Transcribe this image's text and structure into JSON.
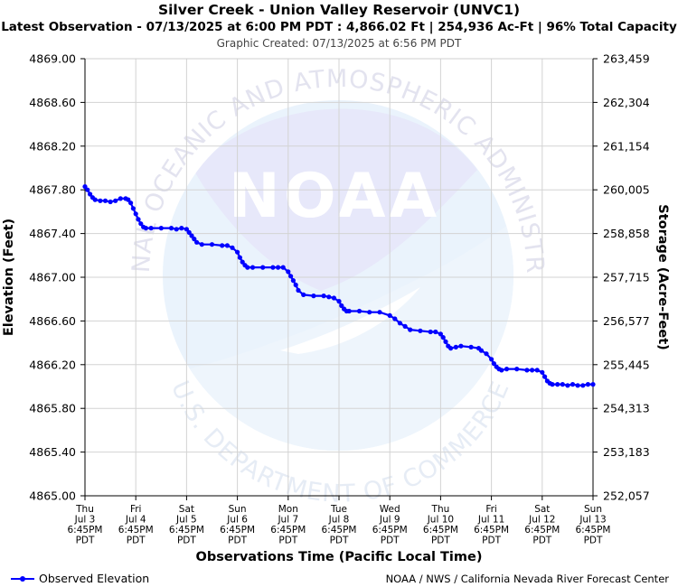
{
  "chart_data": {
    "type": "line",
    "title": "Silver Creek - Union Valley Reservoir (UNVC1)",
    "subtitle": "Latest Observation - 07/13/2025 at 6:00 PM PDT : 4,866.02 Ft | 254,936 Ac-Ft | 96% Total Capacity",
    "created": "Graphic Created: 07/13/2025 at 6:56 PM PDT",
    "xlabel": "Observations Time (Pacific Local Time)",
    "ylabel": "Elevation (Feet)",
    "ylabel_right": "Storage (Acre-Feet)",
    "ylim": [
      4865.0,
      4869.0
    ],
    "y_ticks": [
      "4869.00",
      "4868.60",
      "4868.20",
      "4867.80",
      "4867.40",
      "4867.00",
      "4866.60",
      "4866.20",
      "4865.80",
      "4865.40",
      "4865.00"
    ],
    "y_ticks_right": [
      "263,459",
      "262,304",
      "261,154",
      "260,005",
      "258,858",
      "257,715",
      "256,577",
      "255,445",
      "254,313",
      "253,183",
      "252,057"
    ],
    "x_ticks": [
      [
        "Thu",
        "Jul 3",
        "6:45PM",
        "PDT"
      ],
      [
        "Fri",
        "Jul 4",
        "6:45PM",
        "PDT"
      ],
      [
        "Sat",
        "Jul 5",
        "6:45PM",
        "PDT"
      ],
      [
        "Sun",
        "Jul 6",
        "6:45PM",
        "PDT"
      ],
      [
        "Mon",
        "Jul 7",
        "6:45PM",
        "PDT"
      ],
      [
        "Tue",
        "Jul 8",
        "6:45PM",
        "PDT"
      ],
      [
        "Wed",
        "Jul 9",
        "6:45PM",
        "PDT"
      ],
      [
        "Thu",
        "Jul 10",
        "6:45PM",
        "PDT"
      ],
      [
        "Fri",
        "Jul 11",
        "6:45PM",
        "PDT"
      ],
      [
        "Sat",
        "Jul 12",
        "6:45PM",
        "PDT"
      ],
      [
        "Sun",
        "Jul 13",
        "6:45PM",
        "PDT"
      ]
    ],
    "grid": true,
    "legend_position": "bottom-left",
    "series": [
      {
        "name": "Observed Elevation",
        "color": "#0000ff",
        "x_days": [
          0.0,
          0.05,
          0.1,
          0.15,
          0.2,
          0.3,
          0.4,
          0.5,
          0.6,
          0.7,
          0.8,
          0.85,
          0.9,
          0.95,
          1.0,
          1.05,
          1.1,
          1.15,
          1.2,
          1.3,
          1.5,
          1.7,
          1.8,
          1.9,
          2.0,
          2.05,
          2.1,
          2.15,
          2.2,
          2.3,
          2.5,
          2.7,
          2.8,
          2.9,
          3.0,
          3.05,
          3.1,
          3.15,
          3.2,
          3.3,
          3.5,
          3.7,
          3.8,
          3.9,
          4.0,
          4.05,
          4.1,
          4.15,
          4.2,
          4.3,
          4.5,
          4.7,
          4.8,
          4.9,
          5.0,
          5.05,
          5.1,
          5.15,
          5.2,
          5.4,
          5.6,
          5.8,
          6.0,
          6.1,
          6.2,
          6.3,
          6.4,
          6.6,
          6.8,
          6.9,
          7.0,
          7.05,
          7.1,
          7.15,
          7.2,
          7.3,
          7.4,
          7.6,
          7.75,
          7.8,
          7.9,
          8.0,
          8.05,
          8.1,
          8.15,
          8.2,
          8.3,
          8.5,
          8.7,
          8.8,
          8.9,
          9.0,
          9.05,
          9.1,
          9.15,
          9.2,
          9.3,
          9.4,
          9.5,
          9.6,
          9.7,
          9.8,
          9.9,
          10.0
        ],
        "values": [
          4867.83,
          4867.8,
          4867.76,
          4867.73,
          4867.71,
          4867.7,
          4867.7,
          4867.69,
          4867.7,
          4867.72,
          4867.72,
          4867.71,
          4867.68,
          4867.63,
          4867.58,
          4867.53,
          4867.49,
          4867.46,
          4867.45,
          4867.45,
          4867.45,
          4867.45,
          4867.44,
          4867.45,
          4867.44,
          4867.41,
          4867.38,
          4867.35,
          4867.32,
          4867.3,
          4867.3,
          4867.29,
          4867.29,
          4867.27,
          4867.23,
          4867.18,
          4867.14,
          4867.11,
          4867.09,
          4867.09,
          4867.09,
          4867.09,
          4867.09,
          4867.09,
          4867.05,
          4867.01,
          4866.97,
          4866.93,
          4866.88,
          4866.84,
          4866.83,
          4866.83,
          4866.82,
          4866.81,
          4866.78,
          4866.74,
          4866.71,
          4866.69,
          4866.69,
          4866.69,
          4866.68,
          4866.68,
          4866.65,
          4866.62,
          4866.58,
          4866.55,
          4866.52,
          4866.51,
          4866.5,
          4866.5,
          4866.48,
          4866.45,
          4866.41,
          4866.37,
          4866.35,
          4866.36,
          4866.37,
          4866.36,
          4866.35,
          4866.33,
          4866.3,
          4866.25,
          4866.21,
          4866.18,
          4866.16,
          4866.15,
          4866.16,
          4866.16,
          4866.15,
          4866.15,
          4866.15,
          4866.13,
          4866.09,
          4866.05,
          4866.03,
          4866.02,
          4866.02,
          4866.02,
          4866.01,
          4866.02,
          4866.01,
          4866.01,
          4866.02,
          4866.02
        ]
      }
    ],
    "footer_credit": "NOAA / NWS / California Nevada River Forecast Center"
  },
  "watermark": {
    "logo_text": "NOAA",
    "ring_text_top": "NATIONAL OCEANIC AND ATMOSPHERIC ADMINISTRATION",
    "ring_text_bottom": "U.S. DEPARTMENT OF COMMERCE"
  }
}
